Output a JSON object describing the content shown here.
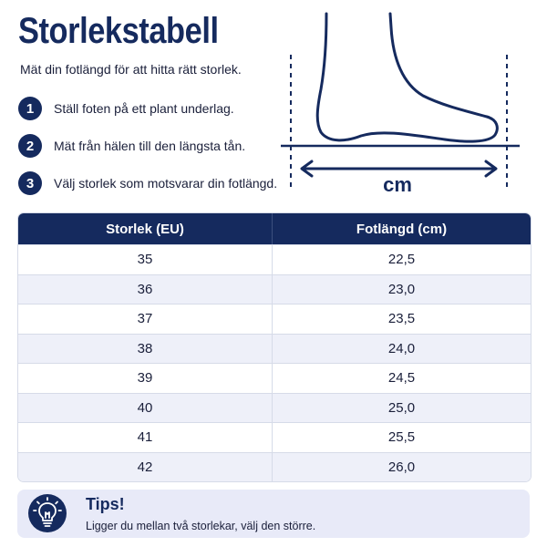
{
  "header": {
    "title": "Storlekstabell",
    "subtitle": "Mät din fotlängd för att hitta rätt storlek."
  },
  "steps": [
    {
      "num": "1",
      "text": "Ställ foten på ett plant underlag."
    },
    {
      "num": "2",
      "text": "Mät från hälen till den längsta tån."
    },
    {
      "num": "3",
      "text": "Välj storlek som motsvarar din fotlängd."
    }
  ],
  "diagram": {
    "unit_label": "cm",
    "icon": "foot-outline-icon"
  },
  "table": {
    "headers": [
      "Storlek (EU)",
      "Fotlängd (cm)"
    ],
    "rows": [
      [
        "35",
        "22,5"
      ],
      [
        "36",
        "23,0"
      ],
      [
        "37",
        "23,5"
      ],
      [
        "38",
        "24,0"
      ],
      [
        "39",
        "24,5"
      ],
      [
        "40",
        "25,0"
      ],
      [
        "41",
        "25,5"
      ],
      [
        "42",
        "26,0"
      ]
    ]
  },
  "tips": {
    "title": "Tips!",
    "text": "Ligger du mellan två storlekar, välj den större.",
    "icon": "lightbulb-icon"
  },
  "colors": {
    "navy": "#152a5e",
    "stripe": "#eef0f9",
    "tips_bg": "#e8eaf8"
  }
}
